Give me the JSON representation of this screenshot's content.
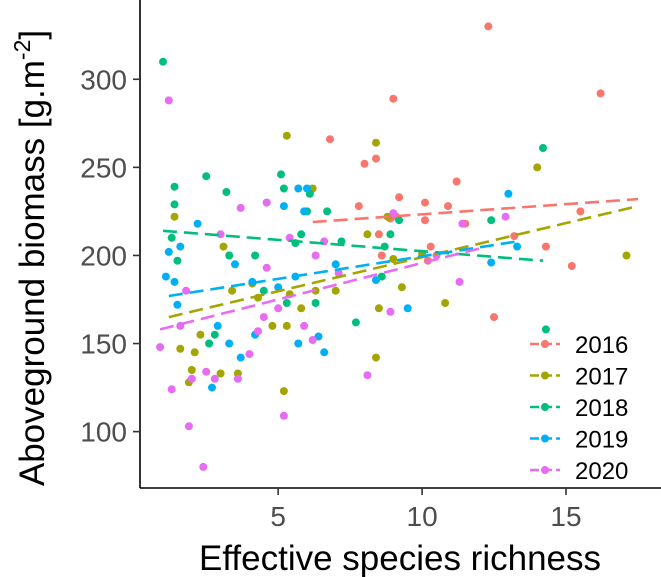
{
  "chart_data": {
    "type": "scatter",
    "title": "",
    "xlabel": "Effective species richness",
    "ylabel_main": "Aboveground biomass [g.m",
    "ylabel_sup": "-2",
    "ylabel_end": "]",
    "xlim": [
      0.2,
      18.3
    ],
    "ylim": [
      68,
      345
    ],
    "xticks": [
      5,
      10,
      15
    ],
    "yticks": [
      100,
      150,
      200,
      250,
      300
    ],
    "grid": false,
    "legend_position": "bottom-right",
    "series": [
      {
        "name": "2016",
        "color": "#F8766D",
        "points": [
          [
            12.3,
            330
          ],
          [
            16.2,
            292
          ],
          [
            9.0,
            289
          ],
          [
            6.8,
            266
          ],
          [
            8.0,
            252
          ],
          [
            8.4,
            255
          ],
          [
            11.2,
            242
          ],
          [
            9.2,
            233
          ],
          [
            10.1,
            230
          ],
          [
            7.8,
            228
          ],
          [
            8.9,
            221
          ],
          [
            10.1,
            220
          ],
          [
            11.5,
            218
          ],
          [
            13.2,
            211
          ],
          [
            8.5,
            212
          ],
          [
            10.3,
            205
          ],
          [
            8.6,
            200
          ],
          [
            10.2,
            197
          ],
          [
            15.2,
            194
          ],
          [
            12.5,
            165
          ],
          [
            14.3,
            205
          ],
          [
            10.9,
            228
          ],
          [
            9.1,
            222
          ],
          [
            15.5,
            225
          ]
        ],
        "trend": [
          [
            6.2,
            219
          ],
          [
            17.5,
            232
          ]
        ]
      },
      {
        "name": "2017",
        "color": "#A3A500",
        "points": [
          [
            5.3,
            268
          ],
          [
            8.4,
            264
          ],
          [
            6.2,
            238
          ],
          [
            14.0,
            250
          ],
          [
            8.8,
            222
          ],
          [
            8.1,
            212
          ],
          [
            9.3,
            182
          ],
          [
            10.0,
            201
          ],
          [
            1.6,
            147
          ],
          [
            1.4,
            222
          ],
          [
            2.3,
            155
          ],
          [
            3.4,
            180
          ],
          [
            1.9,
            128
          ],
          [
            2.0,
            135
          ],
          [
            3.0,
            133
          ],
          [
            3.6,
            133
          ],
          [
            4.3,
            176
          ],
          [
            5.2,
            123
          ],
          [
            5.3,
            160
          ],
          [
            5.4,
            178
          ],
          [
            5.8,
            170
          ],
          [
            6.3,
            180
          ],
          [
            7.0,
            180
          ],
          [
            8.4,
            142
          ],
          [
            8.5,
            170
          ],
          [
            9.0,
            198
          ],
          [
            10.8,
            173
          ],
          [
            17.1,
            200
          ],
          [
            3.1,
            205
          ],
          [
            4.8,
            160
          ],
          [
            2.1,
            145
          ],
          [
            4.1,
            184
          ]
        ],
        "trend": [
          [
            1.2,
            165
          ],
          [
            17.5,
            228
          ]
        ]
      },
      {
        "name": "2018",
        "color": "#00BF7D",
        "points": [
          [
            1.0,
            310
          ],
          [
            14.2,
            261
          ],
          [
            1.4,
            239
          ],
          [
            2.5,
            245
          ],
          [
            3.2,
            236
          ],
          [
            5.1,
            246
          ],
          [
            5.2,
            238
          ],
          [
            5.8,
            212
          ],
          [
            6.1,
            235
          ],
          [
            6.0,
            225
          ],
          [
            6.7,
            225
          ],
          [
            7.2,
            208
          ],
          [
            5.6,
            207
          ],
          [
            8.7,
            205
          ],
          [
            9.2,
            220
          ],
          [
            8.9,
            212
          ],
          [
            12.4,
            220
          ],
          [
            14.3,
            158
          ],
          [
            1.3,
            210
          ],
          [
            1.4,
            229
          ],
          [
            1.5,
            197
          ],
          [
            2.6,
            150
          ],
          [
            3.3,
            200
          ],
          [
            4.2,
            200
          ],
          [
            5.3,
            173
          ],
          [
            6.3,
            173
          ],
          [
            7.7,
            162
          ],
          [
            8.6,
            188
          ],
          [
            2.8,
            155
          ],
          [
            4.5,
            180
          ]
        ],
        "trend": [
          [
            1.0,
            214
          ],
          [
            14.2,
            197
          ]
        ]
      },
      {
        "name": "2019",
        "color": "#00B0F6",
        "points": [
          [
            5.7,
            238
          ],
          [
            6.0,
            238
          ],
          [
            13.0,
            235
          ],
          [
            4.6,
            230
          ],
          [
            5.2,
            228
          ],
          [
            5.9,
            225
          ],
          [
            2.2,
            218
          ],
          [
            1.1,
            188
          ],
          [
            1.4,
            185
          ],
          [
            1.2,
            202
          ],
          [
            1.5,
            172
          ],
          [
            3.5,
            195
          ],
          [
            4.1,
            185
          ],
          [
            5.0,
            182
          ],
          [
            5.6,
            188
          ],
          [
            5.7,
            150
          ],
          [
            6.4,
            154
          ],
          [
            6.6,
            145
          ],
          [
            7.0,
            195
          ],
          [
            8.4,
            186
          ],
          [
            9.5,
            170
          ],
          [
            12.4,
            196
          ],
          [
            13.3,
            205
          ],
          [
            2.7,
            125
          ],
          [
            2.9,
            160
          ],
          [
            3.3,
            150
          ],
          [
            4.2,
            155
          ],
          [
            3.7,
            142
          ],
          [
            1.6,
            205
          ]
        ],
        "trend": [
          [
            1.2,
            177
          ],
          [
            13.3,
            208
          ]
        ]
      },
      {
        "name": "2020",
        "color": "#E76BF3",
        "points": [
          [
            1.2,
            288
          ],
          [
            4.6,
            230
          ],
          [
            3.0,
            212
          ],
          [
            3.7,
            227
          ],
          [
            5.4,
            210
          ],
          [
            6.6,
            208
          ],
          [
            9.0,
            224
          ],
          [
            11.4,
            218
          ],
          [
            12.9,
            222
          ],
          [
            1.9,
            103
          ],
          [
            2.4,
            80
          ],
          [
            2.0,
            130
          ],
          [
            1.3,
            124
          ],
          [
            2.5,
            134
          ],
          [
            0.9,
            148
          ],
          [
            1.6,
            160
          ],
          [
            1.8,
            180
          ],
          [
            2.8,
            130
          ],
          [
            3.6,
            130
          ],
          [
            4.0,
            144
          ],
          [
            4.5,
            165
          ],
          [
            4.6,
            193
          ],
          [
            5.2,
            109
          ],
          [
            5.0,
            170
          ],
          [
            5.9,
            160
          ],
          [
            6.3,
            200
          ],
          [
            7.1,
            190
          ],
          [
            8.1,
            132
          ],
          [
            8.9,
            168
          ],
          [
            10.5,
            200
          ],
          [
            11.3,
            185
          ],
          [
            4.3,
            157
          ],
          [
            6.2,
            152
          ]
        ],
        "trend": [
          [
            0.9,
            158
          ],
          [
            12.0,
            204
          ]
        ]
      }
    ]
  }
}
